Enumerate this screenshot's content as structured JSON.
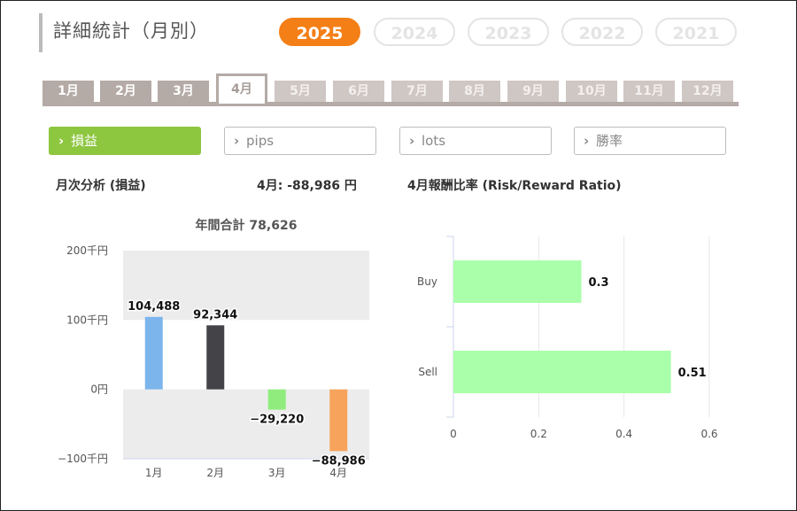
{
  "title": "詳細統計（月別）",
  "years": [
    {
      "label": "2025",
      "active": true
    },
    {
      "label": "2024",
      "active": false
    },
    {
      "label": "2023",
      "active": false
    },
    {
      "label": "2022",
      "active": false
    },
    {
      "label": "2021",
      "active": false
    }
  ],
  "months": [
    {
      "label": "1月",
      "state": "normal"
    },
    {
      "label": "2月",
      "state": "normal"
    },
    {
      "label": "3月",
      "state": "normal"
    },
    {
      "label": "4月",
      "state": "active"
    },
    {
      "label": "5月",
      "state": "dim"
    },
    {
      "label": "6月",
      "state": "dim"
    },
    {
      "label": "7月",
      "state": "dim"
    },
    {
      "label": "8月",
      "state": "dim"
    },
    {
      "label": "9月",
      "state": "dim"
    },
    {
      "label": "10月",
      "state": "dim"
    },
    {
      "label": "11月",
      "state": "dim"
    },
    {
      "label": "12月",
      "state": "dim"
    }
  ],
  "metrics": [
    {
      "label": "損益",
      "active": true
    },
    {
      "label": "pips",
      "active": false
    },
    {
      "label": "lots",
      "active": false
    },
    {
      "label": "勝率",
      "active": false
    }
  ],
  "section": {
    "monthly_title": "月次分析 (損益)",
    "month_summary": "4月:  -88,986 円",
    "ratio_title": "4月報酬比率 (Risk/Reward Ratio)"
  },
  "colors": {
    "accent_orange": "#f47f16",
    "metric_green": "#8dc63f",
    "tab_gray": "#b4aaa6"
  },
  "chart_data": [
    {
      "type": "bar",
      "title": "年間合計 78,626",
      "categories": [
        "1月",
        "2月",
        "3月",
        "4月"
      ],
      "values": [
        104488,
        92344,
        -29220,
        -88986
      ],
      "value_labels": [
        "104,488",
        "92,344",
        "−29,220",
        "−88,986"
      ],
      "colors": [
        "#7cb5ec",
        "#434348",
        "#90ed7d",
        "#f7a35c"
      ],
      "ylim": [
        -100000,
        200000
      ],
      "yticks": [
        200000,
        100000,
        0,
        -100000
      ],
      "ytick_labels": [
        "200千円",
        "100千円",
        "0円",
        "−100千円"
      ],
      "grid": "alternating bands"
    },
    {
      "type": "bar",
      "orientation": "horizontal",
      "categories": [
        "Buy",
        "Sell"
      ],
      "values": [
        0.3,
        0.51
      ],
      "value_labels": [
        "0.3",
        "0.51"
      ],
      "color": "#aaffaa",
      "xlim": [
        0,
        0.6
      ],
      "xticks": [
        0,
        0.2,
        0.4,
        0.6
      ],
      "xtick_labels": [
        "0",
        "0.2",
        "0.4",
        "0.6"
      ],
      "grid": true
    }
  ]
}
